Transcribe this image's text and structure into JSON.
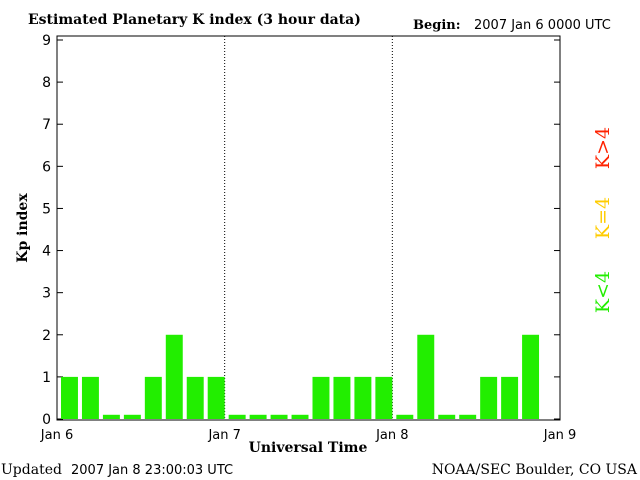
{
  "header": {
    "title": "Estimated Planetary K index (3 hour data)",
    "begin_label": "Begin:",
    "begin_value": "2007 Jan 6 0000 UTC"
  },
  "footer": {
    "updated_label": "Updated",
    "updated_value": "2007 Jan  8 23:00:03 UTC",
    "source": "NOAA/SEC Boulder, CO USA"
  },
  "legend": {
    "high": {
      "label": "K>4",
      "color": "#ff2200"
    },
    "equal": {
      "label": "K=4",
      "color": "#ffcc00"
    },
    "low": {
      "label": "K<4",
      "color": "#22ee00"
    }
  },
  "chart_data": {
    "type": "bar",
    "title": "Estimated Planetary K index (3 hour data)",
    "xlabel": "Universal Time",
    "ylabel": "Kp index",
    "ylim": [
      0,
      9
    ],
    "yticks": [
      0,
      1,
      2,
      3,
      4,
      5,
      6,
      7,
      8,
      9
    ],
    "x_tick_labels": [
      "Jan 6",
      "Jan 7",
      "Jan 8",
      "Jan 9"
    ],
    "day_separators": [
      "Jan 7",
      "Jan 8"
    ],
    "interval_hours": 3,
    "bar_color": "#22ee00",
    "values": [
      1,
      1,
      0.1,
      0.1,
      1,
      2,
      1,
      1,
      0.1,
      0.1,
      0.1,
      0.1,
      1,
      1,
      1,
      1,
      0.1,
      2,
      0.1,
      0.1,
      1,
      1,
      2
    ]
  }
}
